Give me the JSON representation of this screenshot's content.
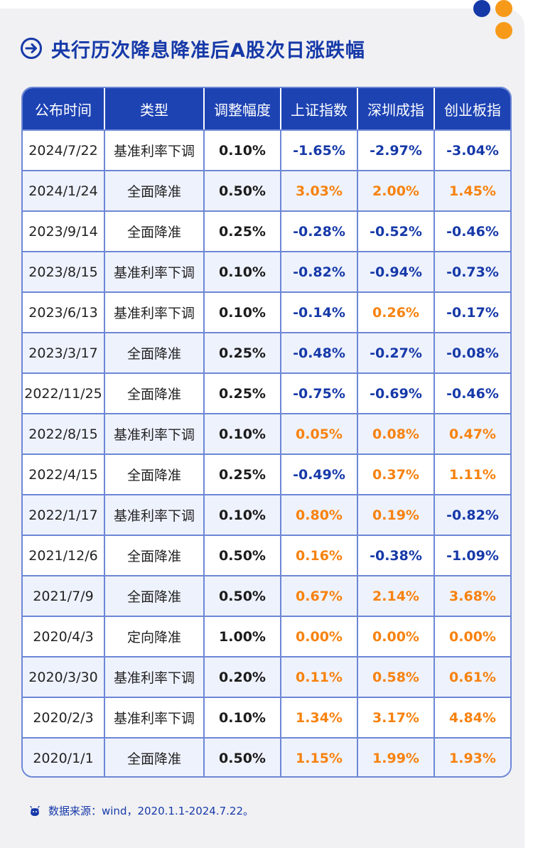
{
  "title": "央行历次降息降准后A股次日涨跌幅",
  "colors": {
    "accent": "#1639a8",
    "orange": "#f7820f",
    "header_bg": "#1d43b3"
  },
  "icons": {
    "title": "arrow-circle-right-icon",
    "source": "bull-icon"
  },
  "table": {
    "headers": [
      "公布时间",
      "类型",
      "调整幅度",
      "上证指数",
      "深圳成指",
      "创业板指"
    ],
    "rows": [
      {
        "date": "2024/7/22",
        "type": "基准利率下调",
        "amount": "0.10%",
        "sh": "-1.65%",
        "sz": "-2.97%",
        "cy": "-3.04%"
      },
      {
        "date": "2024/1/24",
        "type": "全面降准",
        "amount": "0.50%",
        "sh": "3.03%",
        "sz": "2.00%",
        "cy": "1.45%"
      },
      {
        "date": "2023/9/14",
        "type": "全面降准",
        "amount": "0.25%",
        "sh": "-0.28%",
        "sz": "-0.52%",
        "cy": "-0.46%"
      },
      {
        "date": "2023/8/15",
        "type": "基准利率下调",
        "amount": "0.10%",
        "sh": "-0.82%",
        "sz": "-0.94%",
        "cy": "-0.73%"
      },
      {
        "date": "2023/6/13",
        "type": "基准利率下调",
        "amount": "0.10%",
        "sh": "-0.14%",
        "sz": "0.26%",
        "cy": "-0.17%"
      },
      {
        "date": "2023/3/17",
        "type": "全面降准",
        "amount": "0.25%",
        "sh": "-0.48%",
        "sz": "-0.27%",
        "cy": "-0.08%"
      },
      {
        "date": "2022/11/25",
        "type": "全面降准",
        "amount": "0.25%",
        "sh": "-0.75%",
        "sz": "-0.69%",
        "cy": "-0.46%"
      },
      {
        "date": "2022/8/15",
        "type": "基准利率下调",
        "amount": "0.10%",
        "sh": "0.05%",
        "sz": "0.08%",
        "cy": "0.47%"
      },
      {
        "date": "2022/4/15",
        "type": "全面降准",
        "amount": "0.25%",
        "sh": "-0.49%",
        "sz": "0.37%",
        "cy": "1.11%"
      },
      {
        "date": "2022/1/17",
        "type": "基准利率下调",
        "amount": "0.10%",
        "sh": "0.80%",
        "sz": "0.19%",
        "cy": "-0.82%"
      },
      {
        "date": "2021/12/6",
        "type": "全面降准",
        "amount": "0.50%",
        "sh": "0.16%",
        "sz": "-0.38%",
        "cy": "-1.09%"
      },
      {
        "date": "2021/7/9",
        "type": "全面降准",
        "amount": "0.50%",
        "sh": "0.67%",
        "sz": "2.14%",
        "cy": "3.68%"
      },
      {
        "date": "2020/4/3",
        "type": "定向降准",
        "amount": "1.00%",
        "sh": "0.00%",
        "sz": "0.00%",
        "cy": "0.00%"
      },
      {
        "date": "2020/3/30",
        "type": "基准利率下调",
        "amount": "0.20%",
        "sh": "0.11%",
        "sz": "0.58%",
        "cy": "0.61%"
      },
      {
        "date": "2020/2/3",
        "type": "基准利率下调",
        "amount": "0.10%",
        "sh": "1.34%",
        "sz": "3.17%",
        "cy": "4.84%"
      },
      {
        "date": "2020/1/1",
        "type": "全面降准",
        "amount": "0.50%",
        "sh": "1.15%",
        "sz": "1.99%",
        "cy": "1.93%"
      }
    ]
  },
  "source": "数据来源：wind，2020.1.1-2024.7.22。"
}
